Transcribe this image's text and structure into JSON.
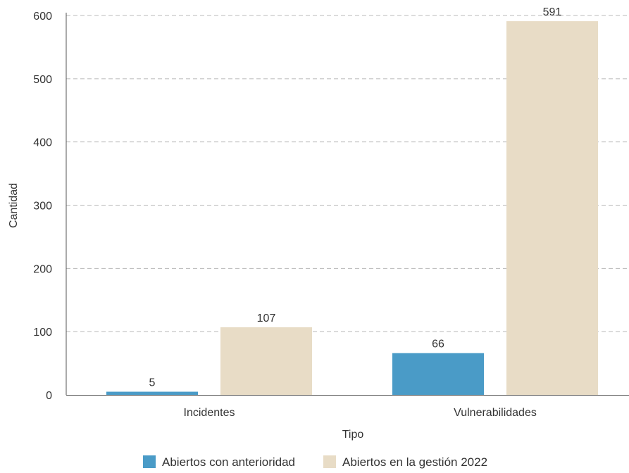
{
  "chart_data": {
    "type": "bar",
    "categories": [
      "Incidentes",
      "Vulnerabilidades"
    ],
    "series": [
      {
        "name": "Abiertos con anterioridad",
        "values": [
          5,
          66
        ],
        "color": "#4a9bc7"
      },
      {
        "name": "Abiertos en la gestión 2022",
        "values": [
          107,
          591
        ],
        "color": "#e8dcc6"
      }
    ],
    "xlabel": "Tipo",
    "ylabel": "Cantidad",
    "ylim": [
      0,
      600
    ],
    "yticks": [
      0,
      100,
      200,
      300,
      400,
      500,
      600
    ],
    "grid": true,
    "legend": "bottom"
  }
}
